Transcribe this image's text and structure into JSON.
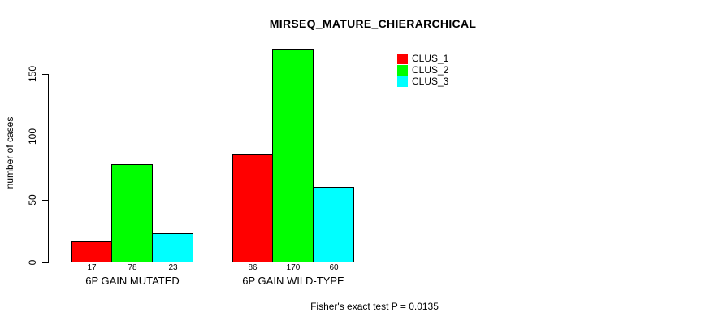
{
  "chart_data": {
    "type": "bar",
    "title": "MIRSEQ_MATURE_CHIERARCHICAL",
    "categories": [
      "6P GAIN MUTATED",
      "6P GAIN WILD-TYPE"
    ],
    "series": [
      {
        "name": "CLUS_1",
        "color": "#ff0000",
        "values": [
          17,
          86
        ]
      },
      {
        "name": "CLUS_2",
        "color": "#00ff00",
        "values": [
          78,
          170
        ]
      },
      {
        "name": "CLUS_3",
        "color": "#00ffff",
        "values": [
          23,
          60
        ]
      }
    ],
    "ylabel": "number of cases",
    "xlabel": "",
    "yticks": [
      0,
      50,
      100,
      150
    ],
    "ylim": [
      0,
      175
    ],
    "grid": false,
    "legend_position": "top-right",
    "bar_border_color": "#000000",
    "annotation": "Fisher's exact test P = 0.0135"
  }
}
